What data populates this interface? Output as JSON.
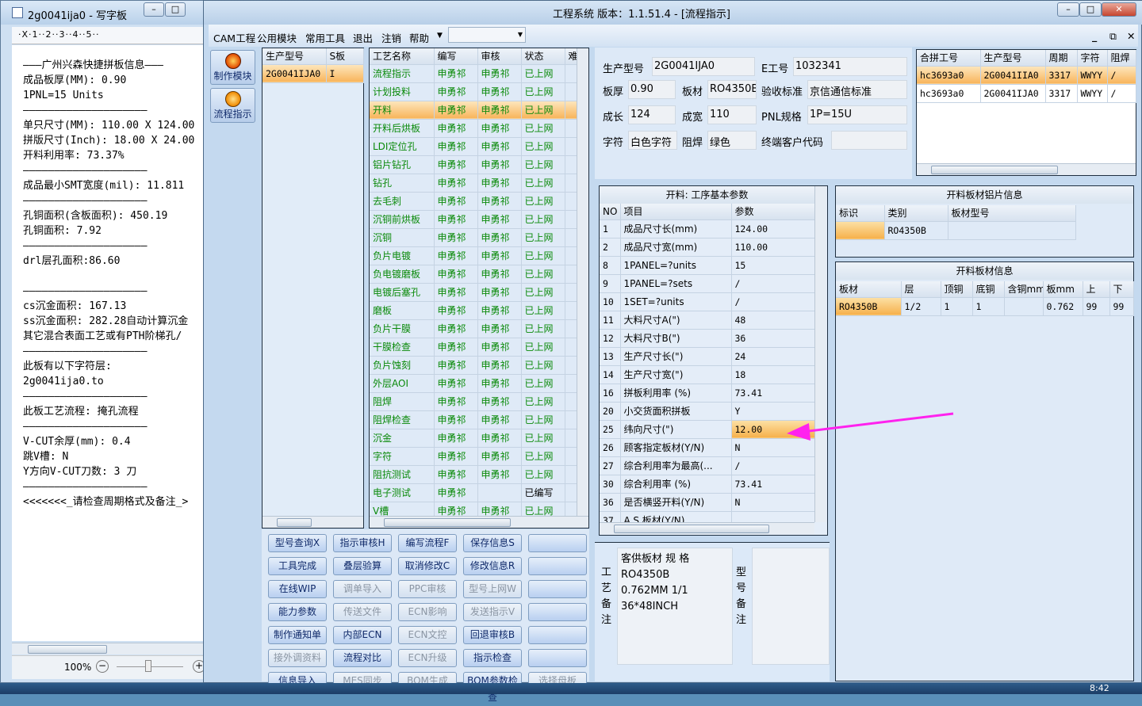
{
  "wordpad": {
    "title": "2g0041ija0 - 写字板",
    "ruler": "·X·1··2··3··4··5··",
    "zoom": "100%",
    "lines": [
      "———广州兴森快捷拼板信息———",
      "成品板厚(MM): 0.90",
      "1PNL=15 Units",
      "————————————————————",
      "单只尺寸(MM): 110.00 X 124.00",
      "拼版尺寸(Inch): 18.00 X 24.00",
      "开料利用率: 73.37%",
      "————————————————————",
      "成品最小SMT宽度(mil): 11.811",
      "————————————————————",
      "孔铜面积(含板面积): 450.19",
      "孔铜面积: 7.92",
      "————————————————————",
      "drl层孔面积:86.60",
      "",
      "————————————————————",
      "cs沉金面积: 167.13",
      "ss沉金面积: 282.28自动计算沉金",
      "其它混合表面工艺或有PTH阶梯孔/",
      "————————————————————",
      "此板有以下字符层:",
      "2g0041ija0.to",
      "————————————————————",
      "此板工艺流程: 掩孔流程",
      "————————————————————",
      "V-CUT余厚(mm): 0.4",
      "跳V槽: N",
      "Y方向V-CUT刀数: 3 刀",
      "————————————————————",
      "<<<<<<<_请检查周期格式及备注_>"
    ]
  },
  "main": {
    "title": "工程系统   版本：1.1.51.4 - [流程指示]",
    "menu": [
      "CAM工程",
      "公用模块",
      "常用工具",
      "退出",
      "注销",
      "帮助"
    ],
    "nav": [
      {
        "label": "制作模块"
      },
      {
        "label": "流程指示"
      }
    ]
  },
  "models": {
    "headers": [
      "生产型号",
      "S板"
    ],
    "rows": [
      [
        "2G0041IJA0",
        "I"
      ]
    ]
  },
  "process": {
    "headers": [
      "工艺名称",
      "编写",
      "审核",
      "状态",
      "难"
    ],
    "rows": [
      [
        "流程指示",
        "申勇祁",
        "申勇祁",
        "已上网"
      ],
      [
        "计划投料",
        "申勇祁",
        "申勇祁",
        "已上网"
      ],
      [
        "开料",
        "申勇祁",
        "申勇祁",
        "已上网"
      ],
      [
        "开料后烘板",
        "申勇祁",
        "申勇祁",
        "已上网"
      ],
      [
        "LDI定位孔",
        "申勇祁",
        "申勇祁",
        "已上网"
      ],
      [
        "铝片钻孔",
        "申勇祁",
        "申勇祁",
        "已上网"
      ],
      [
        "钻孔",
        "申勇祁",
        "申勇祁",
        "已上网"
      ],
      [
        "去毛刺",
        "申勇祁",
        "申勇祁",
        "已上网"
      ],
      [
        "沉铜前烘板",
        "申勇祁",
        "申勇祁",
        "已上网"
      ],
      [
        "沉铜",
        "申勇祁",
        "申勇祁",
        "已上网"
      ],
      [
        "负片电镀",
        "申勇祁",
        "申勇祁",
        "已上网"
      ],
      [
        "负电镀磨板",
        "申勇祁",
        "申勇祁",
        "已上网"
      ],
      [
        "电镀后塞孔",
        "申勇祁",
        "申勇祁",
        "已上网"
      ],
      [
        "磨板",
        "申勇祁",
        "申勇祁",
        "已上网"
      ],
      [
        "负片干膜",
        "申勇祁",
        "申勇祁",
        "已上网"
      ],
      [
        "干膜检查",
        "申勇祁",
        "申勇祁",
        "已上网"
      ],
      [
        "负片蚀刻",
        "申勇祁",
        "申勇祁",
        "已上网"
      ],
      [
        "外层AOI",
        "申勇祁",
        "申勇祁",
        "已上网"
      ],
      [
        "阻焊",
        "申勇祁",
        "申勇祁",
        "已上网"
      ],
      [
        "阻焊检查",
        "申勇祁",
        "申勇祁",
        "已上网"
      ],
      [
        "沉金",
        "申勇祁",
        "申勇祁",
        "已上网"
      ],
      [
        "字符",
        "申勇祁",
        "申勇祁",
        "已上网"
      ],
      [
        "阻抗测试",
        "申勇祁",
        "申勇祁",
        "已上网"
      ],
      [
        "电子测试",
        "申勇祁",
        "",
        "已编写"
      ],
      [
        "V槽",
        "申勇祁",
        "申勇祁",
        "已上网"
      ]
    ]
  },
  "buttons": [
    [
      "型号查询X",
      "指示审核H",
      "编写流程F",
      "保存信息S",
      ""
    ],
    [
      "工具完成",
      "叠层验算",
      "取消修改C",
      "修改信息R",
      ""
    ],
    [
      "在线WIP",
      "调单导入",
      "PPC审核",
      "型号上网W",
      ""
    ],
    [
      "能力参数",
      "传送文件",
      "ECN影响",
      "发送指示V",
      ""
    ],
    [
      "制作通知单",
      "内部ECN",
      "ECN文控",
      "回退审核B",
      ""
    ],
    [
      "接外调资料",
      "流程对比",
      "ECN升级",
      "指示检查",
      ""
    ],
    [
      "信息导入",
      "MES同步",
      "BOM生成",
      "BOM参数检查",
      "选择母板"
    ]
  ],
  "disabled": [
    "调单导入",
    "PPC审核",
    "型号上网W",
    "传送文件",
    "ECN影响",
    "发送指示V",
    "ECN文控",
    "接外调资料",
    "ECN升级",
    "MES同步",
    "BOM生成",
    "选择母板"
  ],
  "info": {
    "fields": [
      {
        "label": "生产型号",
        "value": "2G0041IJA0"
      },
      {
        "label": "E工号",
        "value": "1032341"
      },
      {
        "label": "板厚",
        "value": "0.90"
      },
      {
        "label": "板材",
        "value": "RO4350B"
      },
      {
        "label": "验收标准",
        "value": "京信通信标准"
      },
      {
        "label": "成长",
        "value": "124"
      },
      {
        "label": "成宽",
        "value": "110"
      },
      {
        "label": "PNL规格",
        "value": "1P=15U"
      },
      {
        "label": "字符",
        "value": "白色字符"
      },
      {
        "label": "阻焊",
        "value": "绿色"
      },
      {
        "label": "终端客户代码",
        "value": ""
      }
    ]
  },
  "merge": {
    "headers": [
      "合拼工号",
      "生产型号",
      "周期",
      "字符",
      "阻焊"
    ],
    "rows": [
      [
        "hc3693a0",
        "2G0041IIA0",
        "3317",
        "WWYY",
        "/"
      ],
      [
        "hc3693a0",
        "2G0041IJA0",
        "3317",
        "WWYY",
        "/"
      ]
    ]
  },
  "params": {
    "title": "开料: 工序基本参数",
    "headers": [
      "NO",
      "项目",
      "参数"
    ],
    "rows": [
      [
        "1",
        "成品尺寸长(mm)",
        "124.00"
      ],
      [
        "2",
        "成品尺寸宽(mm)",
        "110.00"
      ],
      [
        "8",
        "1PANEL=?units",
        "15"
      ],
      [
        "9",
        "1PANEL=?sets",
        "/"
      ],
      [
        "10",
        "1SET=?units",
        "/"
      ],
      [
        "11",
        "大料尺寸A(\")",
        "48"
      ],
      [
        "12",
        "大料尺寸B(\")",
        "36"
      ],
      [
        "13",
        "生产尺寸长(\")",
        "24"
      ],
      [
        "14",
        "生产尺寸宽(\")",
        "18"
      ],
      [
        "16",
        "拼板利用率 (%)",
        "73.41"
      ],
      [
        "20",
        "小交货面积拼板",
        "Y"
      ],
      [
        "25",
        "纬向尺寸(\")",
        "12.00"
      ],
      [
        "26",
        "顾客指定板材(Y/N)",
        "N"
      ],
      [
        "27",
        "综合利用率为最高(...",
        "/"
      ],
      [
        "30",
        "综合利用率 (%)",
        "73.41"
      ],
      [
        "36",
        "是否横竖开料(Y/N)",
        "N"
      ],
      [
        "37",
        "A.S.板材(Y/N)",
        ""
      ]
    ]
  },
  "alu": {
    "title": "开料板材铝片信息",
    "headers": [
      "标识",
      "类别",
      "板材型号"
    ],
    "rows": [
      [
        "",
        "RO4350B",
        ""
      ]
    ]
  },
  "sheet": {
    "title": "开料板材信息",
    "headers": [
      "板材",
      "层",
      "顶铜",
      "底铜",
      "含铜mm",
      "板mm",
      "上",
      "下"
    ],
    "rows": [
      [
        "RO4350B",
        "1/2",
        "1",
        "1",
        "",
        "0.762",
        "99",
        "99"
      ]
    ]
  },
  "remarks": {
    "process_label": "工艺备注",
    "process_text": [
      "客供板材 规 格",
      "RO4350B",
      "0.762MM 1/1",
      "36*48INCH"
    ],
    "model_label": "型号备注"
  },
  "taskbar": {
    "clock": "8:42"
  },
  "colors": {
    "accent": "#f6b04a",
    "annotation_arrow": "#ff22ee",
    "status_green": "#0a8a0a"
  }
}
